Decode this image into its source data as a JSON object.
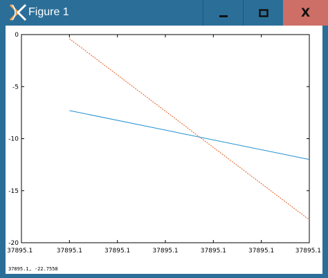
{
  "window": {
    "title": "Figure 1",
    "app_icon": "octave-icon",
    "buttons": {
      "minimize_icon": "minimize-icon",
      "maximize_icon": "maximize-icon",
      "close_label": "X"
    },
    "colors": {
      "titlebar": "#2b6f99",
      "close_button": "#cd6e67"
    }
  },
  "status": {
    "coordinates": "37895.1, -22.7558"
  },
  "chart_data": {
    "type": "line",
    "xlabel": "",
    "ylabel": "",
    "title": "",
    "grid": false,
    "x_tick_labels": [
      "37895.1",
      "37895.1",
      "37895.1",
      "37895.1",
      "37895.1",
      "37895.1",
      "37895.1"
    ],
    "y_ticks": [
      0,
      -5,
      -10,
      -15,
      -20
    ],
    "y_tick_labels": [
      "0",
      "-5",
      "-10",
      "-15",
      "-20"
    ],
    "xlim": [
      0,
      6
    ],
    "ylim": [
      -20,
      0
    ],
    "series": [
      {
        "color": "#1f8fd0",
        "style": "solid",
        "x": [
          1,
          6
        ],
        "y": [
          -7.3,
          -12
        ]
      },
      {
        "color": "#e0581a",
        "style": "dashed",
        "x": [
          1,
          6
        ],
        "y": [
          -0.4,
          -17.8
        ]
      }
    ]
  }
}
